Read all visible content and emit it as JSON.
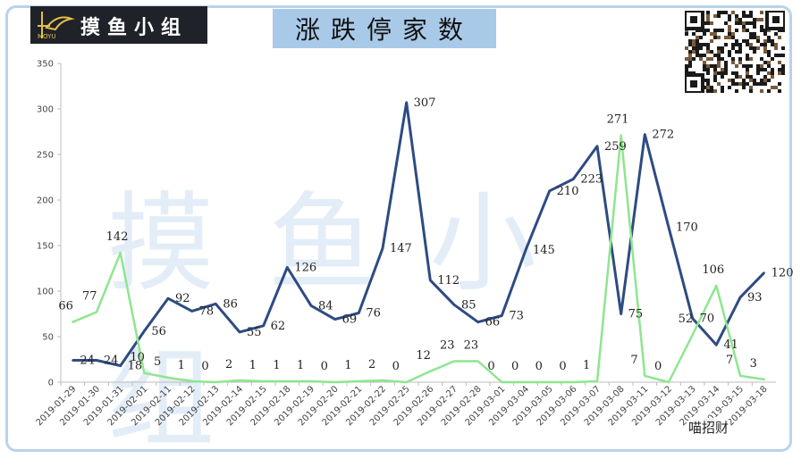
{
  "logo": {
    "text": "摸鱼小组",
    "sub": "MOYU"
  },
  "watermark": "摸鱼小组",
  "source": "喵招财",
  "colors": {
    "series1": "#2e4b82",
    "series2": "#8ee68e",
    "title_bg": "#a9c9e8"
  },
  "chart_data": {
    "type": "line",
    "title": "涨跌停家数",
    "ylim": [
      0,
      350
    ],
    "yticks": [
      0,
      50,
      100,
      150,
      200,
      250,
      300,
      350
    ],
    "grid": false,
    "categories": [
      "2019-01-29",
      "2019-01-30",
      "2019-01-31",
      "2019-02-01",
      "2019-02-11",
      "2019-02-12",
      "2019-02-13",
      "2019-02-14",
      "2019-02-15",
      "2019-02-18",
      "2019-02-19",
      "2019-02-20",
      "2019-02-21",
      "2019-02-22",
      "2019-02-25",
      "2019-02-26",
      "2019-02-27",
      "2019-02-28",
      "2019-03-01",
      "2019-03-04",
      "2019-03-05",
      "2019-03-06",
      "2019-03-07",
      "2019-03-08",
      "2019-03-11",
      "2019-03-12",
      "2019-03-13",
      "2019-03-14",
      "2019-03-15",
      "2019-03-18"
    ],
    "series": [
      {
        "values": [
          24,
          24,
          18,
          56,
          92,
          78,
          86,
          55,
          62,
          126,
          84,
          69,
          76,
          147,
          307,
          112,
          85,
          66,
          73,
          145,
          210,
          223,
          259,
          75,
          272,
          170,
          70,
          41,
          93,
          120
        ]
      },
      {
        "values": [
          66,
          77,
          142,
          10,
          5,
          1,
          0,
          2,
          1,
          1,
          1,
          0,
          1,
          2,
          0,
          12,
          23,
          23,
          0,
          0,
          0,
          0,
          1,
          271,
          7,
          0,
          52,
          106,
          7,
          3
        ]
      }
    ]
  }
}
